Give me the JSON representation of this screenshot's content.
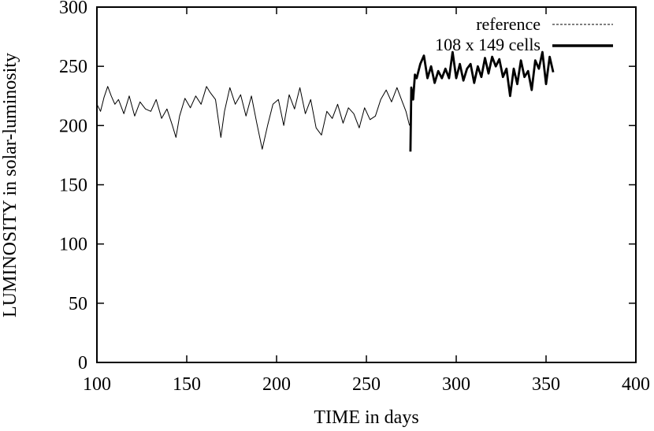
{
  "chart_data": {
    "type": "line",
    "title": "",
    "xlabel": "TIME in days",
    "ylabel": "LUMINOSITY in solar-luminosity",
    "xlim": [
      100,
      400
    ],
    "ylim": [
      0,
      300
    ],
    "xticks": [
      100,
      150,
      200,
      250,
      300,
      350,
      400
    ],
    "yticks": [
      0,
      50,
      100,
      150,
      200,
      250,
      300
    ],
    "grid": false,
    "legend_position": "top-right",
    "series": [
      {
        "name": "reference",
        "style": "thin",
        "x": [
          100,
          102,
          104,
          106,
          108,
          110,
          112,
          115,
          118,
          121,
          124,
          127,
          130,
          133,
          136,
          139,
          142,
          144,
          146,
          149,
          152,
          155,
          158,
          161,
          163,
          166,
          169,
          171,
          174,
          177,
          180,
          183,
          186,
          189,
          192,
          195,
          198,
          201,
          204,
          207,
          210,
          213,
          216,
          219,
          222,
          225,
          228,
          231,
          234,
          237,
          240,
          243,
          246,
          249,
          252,
          255,
          258,
          261,
          264,
          267,
          270,
          272,
          274
        ],
        "y": [
          218,
          212,
          224,
          233,
          225,
          218,
          222,
          210,
          225,
          208,
          220,
          214,
          212,
          222,
          206,
          214,
          200,
          190,
          208,
          223,
          215,
          225,
          218,
          233,
          228,
          222,
          190,
          212,
          232,
          218,
          226,
          208,
          225,
          202,
          180,
          200,
          218,
          222,
          200,
          226,
          214,
          232,
          210,
          222,
          198,
          192,
          212,
          206,
          218,
          202,
          215,
          210,
          198,
          215,
          205,
          208,
          222,
          230,
          220,
          232,
          220,
          212,
          200
        ]
      },
      {
        "name": "108 x 149 cells",
        "style": "thick",
        "x": [
          274.5,
          275,
          276,
          277,
          278,
          280,
          282,
          284,
          286,
          288,
          290,
          292,
          294,
          296,
          298,
          300,
          302,
          304,
          306,
          308,
          310,
          312,
          314,
          316,
          318,
          320,
          322,
          324,
          326,
          328,
          330,
          332,
          334,
          336,
          338,
          340,
          342,
          344,
          346,
          348,
          350,
          352,
          354
        ],
        "y": [
          178,
          232,
          222,
          243,
          240,
          252,
          259,
          240,
          250,
          236,
          246,
          240,
          248,
          240,
          262,
          240,
          252,
          238,
          248,
          252,
          236,
          250,
          241,
          257,
          244,
          258,
          250,
          256,
          241,
          248,
          225,
          248,
          235,
          255,
          241,
          246,
          230,
          255,
          248,
          262,
          235,
          258,
          245
        ]
      }
    ]
  }
}
